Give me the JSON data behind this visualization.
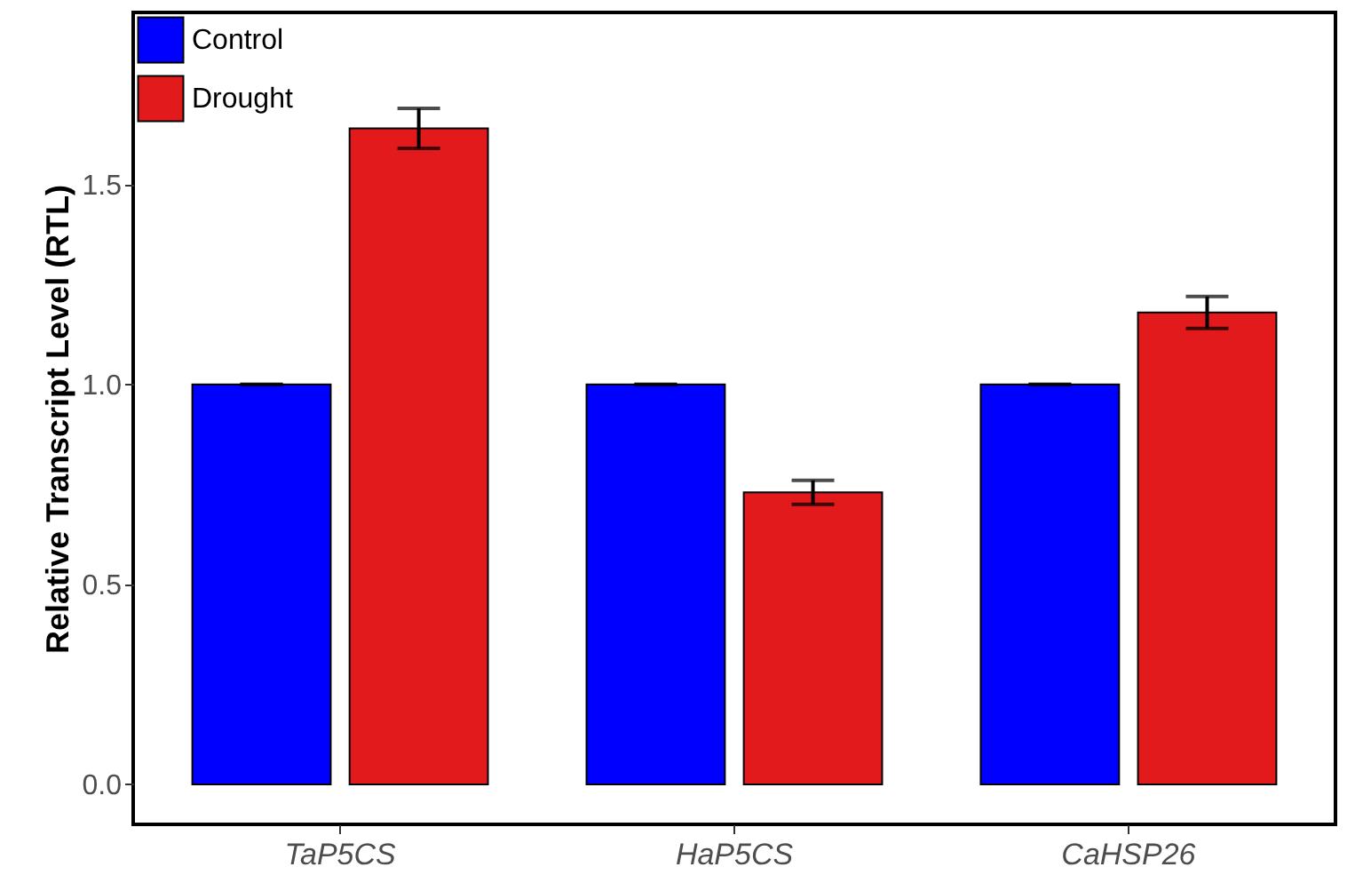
{
  "chart_data": {
    "type": "bar",
    "ylabel": "Relative Transcript Level (RTL)",
    "categories": [
      "TaP5CS",
      "HaP5CS",
      "CaHSP26"
    ],
    "series": [
      {
        "name": "Control",
        "color": "#0000ff",
        "values": [
          1.0,
          1.0,
          1.0
        ],
        "errors": [
          0,
          0,
          0
        ]
      },
      {
        "name": "Drought",
        "color": "#e31a1c",
        "values": [
          1.64,
          0.73,
          1.18
        ],
        "errors": [
          0.05,
          0.03,
          0.04
        ]
      }
    ],
    "ylim": [
      -0.1,
      1.93
    ],
    "yticks": [
      {
        "value": 0,
        "label": "0.0"
      },
      {
        "value": 0.5,
        "label": "0.5"
      },
      {
        "value": 1,
        "label": "1.0"
      },
      {
        "value": 1.5,
        "label": "1.5"
      }
    ],
    "legend": "top left",
    "grid": false
  }
}
